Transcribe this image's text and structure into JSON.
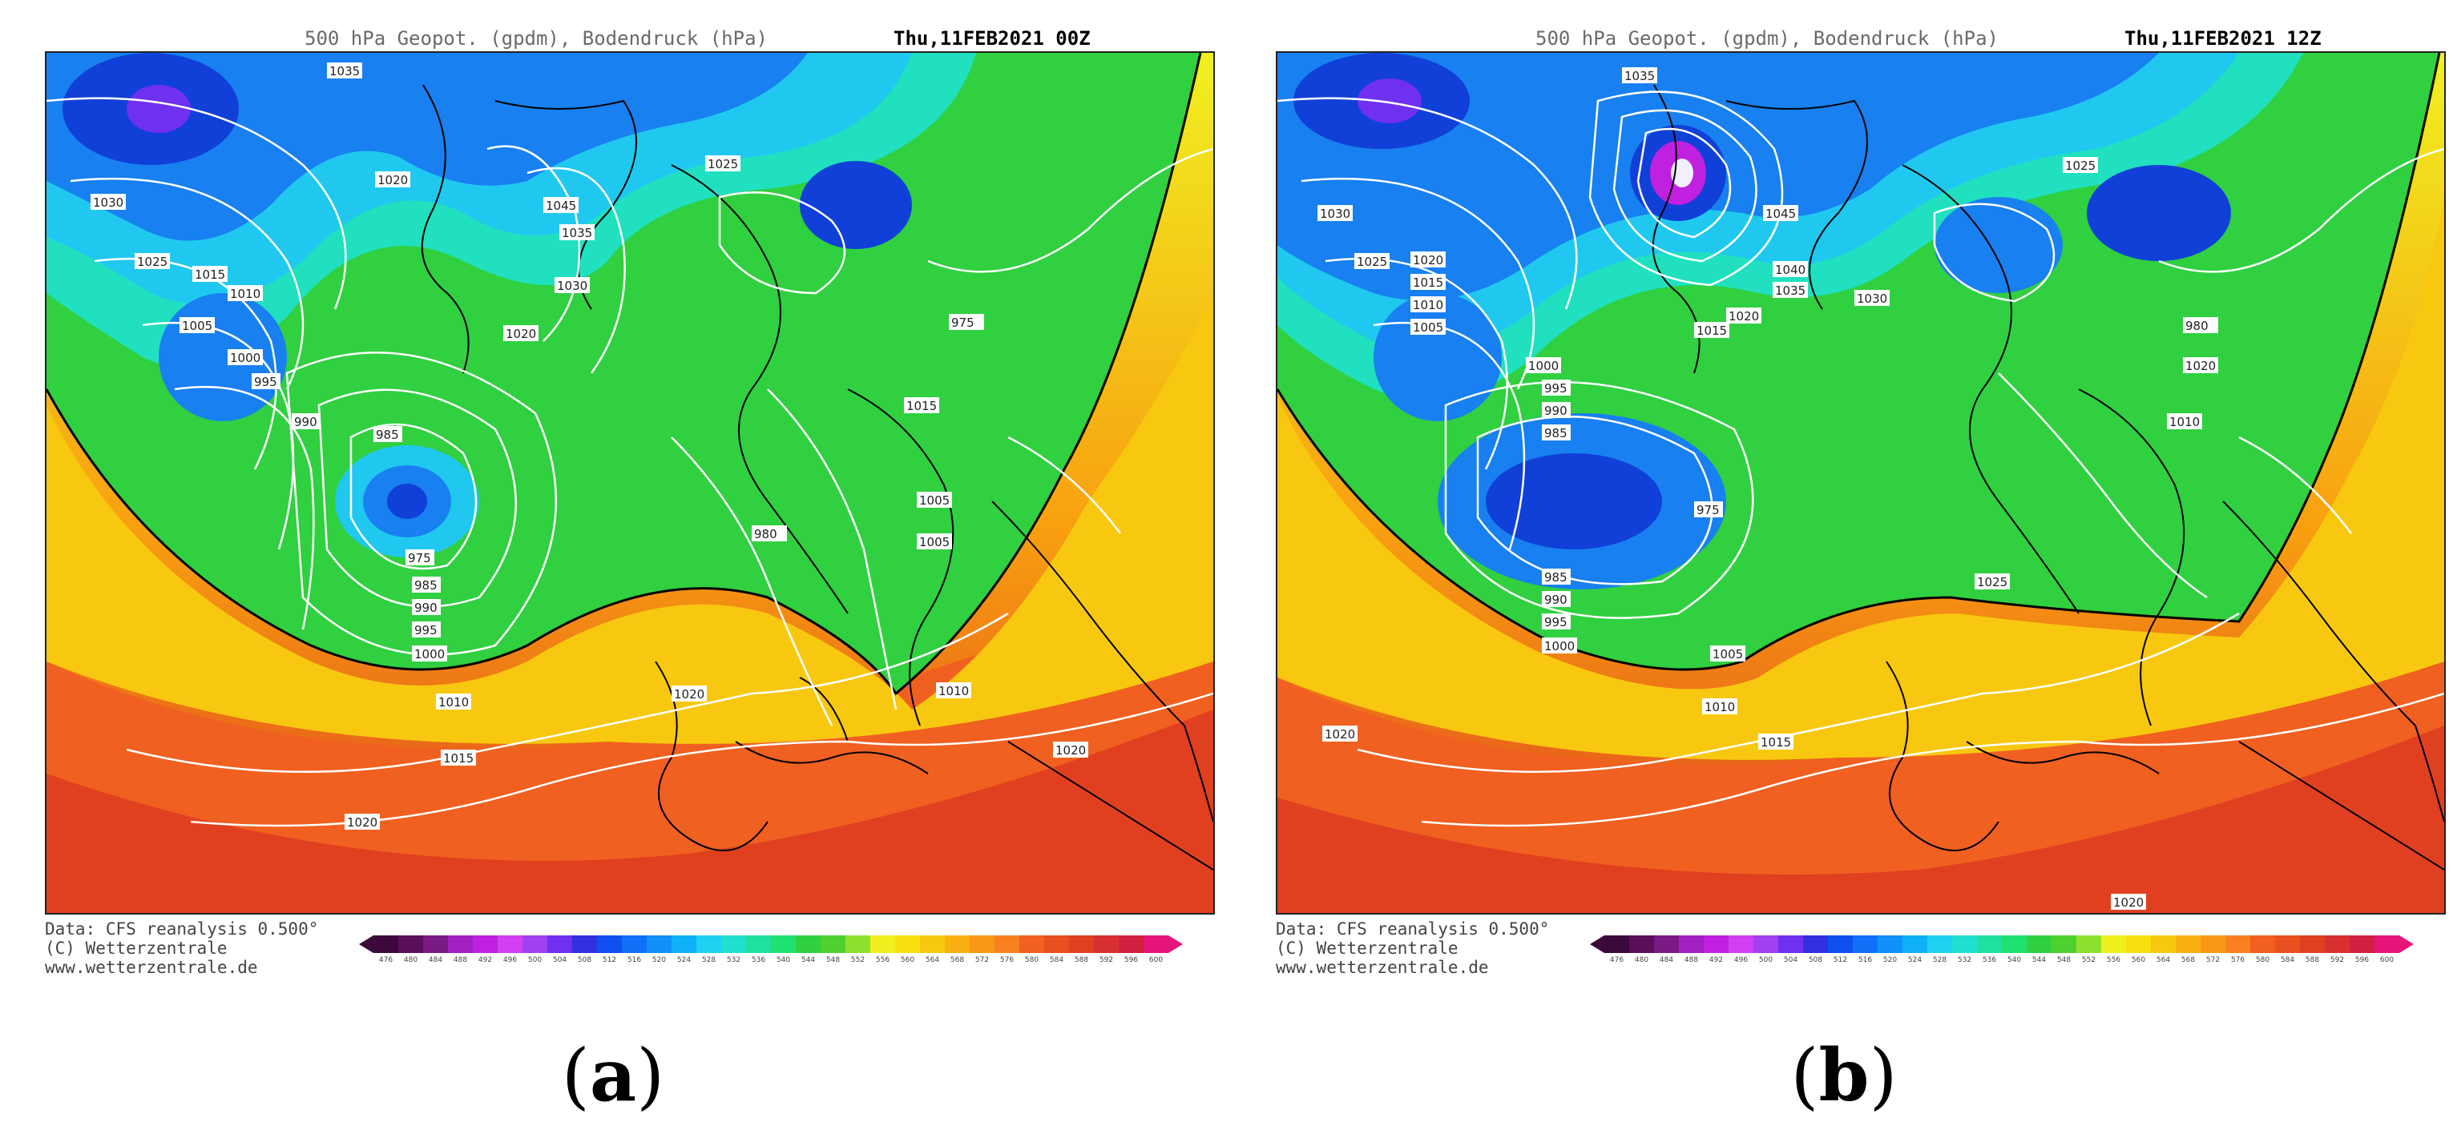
{
  "panels": [
    {
      "id": "a",
      "header_title": "500 hPa Geopot. (gpdm), Bodendruck (hPa)",
      "header_date": "Thu,11FEB2021 00Z",
      "label": "a",
      "pressure_labels": [
        "1035",
        "1030",
        "1025",
        "1020",
        "1015",
        "1010",
        "1005",
        "1000",
        "995",
        "990",
        "985",
        "975",
        "1045",
        "1035",
        "1030",
        "1025",
        "1020",
        "1015",
        "1010",
        "1005",
        "1000",
        "995",
        "990",
        "985",
        "980",
        "975",
        "1020",
        "1015",
        "1010",
        "1005",
        "1020",
        "1020"
      ]
    },
    {
      "id": "b",
      "header_title": "500 hPa Geopot. (gpdm), Bodendruck (hPa)",
      "header_date": "Thu,11FEB2021 12Z",
      "label": "b",
      "pressure_labels": [
        "1035",
        "1030",
        "1025",
        "1020",
        "1015",
        "1010",
        "1005",
        "1000",
        "995",
        "990",
        "985",
        "975",
        "1045",
        "1040",
        "1035",
        "1030",
        "1025",
        "1020",
        "1015",
        "1010",
        "1005",
        "1000",
        "995",
        "990",
        "985",
        "980",
        "1020",
        "1015",
        "1010",
        "1025",
        "1020",
        "1020"
      ]
    }
  ],
  "credit": {
    "line1": "Data: CFS reanalysis 0.500°",
    "line2": "(C) Wetterzentrale",
    "line3": "www.wetterzentrale.de"
  },
  "colorbar": {
    "ticks": [
      "476",
      "480",
      "484",
      "488",
      "492",
      "496",
      "500",
      "504",
      "508",
      "512",
      "516",
      "520",
      "524",
      "528",
      "532",
      "536",
      "540",
      "544",
      "548",
      "552",
      "556",
      "560",
      "564",
      "568",
      "572",
      "576",
      "580",
      "584",
      "588",
      "592",
      "596",
      "600"
    ],
    "colors": [
      "#3b0a3a",
      "#5a0f5a",
      "#7a1a84",
      "#a020c0",
      "#c020e0",
      "#d040f0",
      "#a040f0",
      "#7030f0",
      "#3030e0",
      "#1050f0",
      "#1070f8",
      "#1090f8",
      "#10b0f8",
      "#20d0f0",
      "#20e0d0",
      "#20e0a0",
      "#20e070",
      "#30d040",
      "#50d030",
      "#90e030",
      "#f0f020",
      "#f8e010",
      "#f8c810",
      "#f8b010",
      "#f89818",
      "#f88020",
      "#f06020",
      "#e85020",
      "#e04020",
      "#d83030",
      "#d02040",
      "#e6157a"
    ]
  },
  "map_colors": {
    "deep_blue": "#1040d8",
    "blue": "#1880f0",
    "cyan": "#20c8f0",
    "teal": "#20e0c0",
    "green": "#30d040",
    "yellow": "#f0f020",
    "orange": "#f8a010",
    "red_orange": "#f06020",
    "red": "#d83030",
    "magenta": "#c020e0",
    "isobar": "#ffffff",
    "coastline": "#000000"
  }
}
